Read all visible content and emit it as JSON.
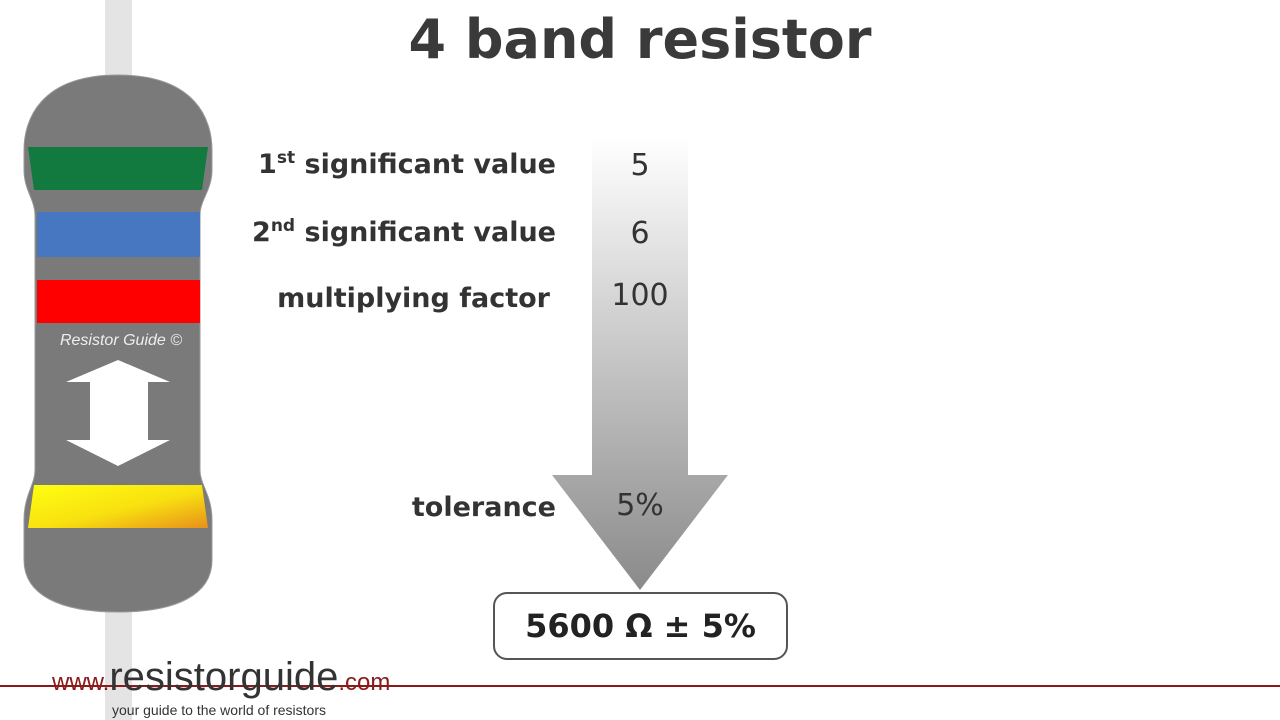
{
  "title": "4 band resistor",
  "rows": [
    {
      "label_num": "1",
      "label_sup": "st",
      "label_rest": " significant value",
      "value": "5"
    },
    {
      "label_num": "2",
      "label_sup": "nd",
      "label_rest": " significant value",
      "value": "6"
    },
    {
      "label": "multiplying factor",
      "value": "100"
    },
    {
      "label": "tolerance",
      "value": "5%"
    }
  ],
  "result": "5600 Ω ± 5%",
  "resistor": {
    "watermark": "Resistor Guide ©",
    "bands": [
      "#127a3f",
      "#4677c0",
      "#ff0000",
      "gold-gradient"
    ],
    "body_color": "#7a7a7a"
  },
  "footer": {
    "www": "www.",
    "site": "resistorguide",
    "com": ".com",
    "tagline": "your guide to the world of resistors",
    "line_color": "#8b1a1a"
  }
}
